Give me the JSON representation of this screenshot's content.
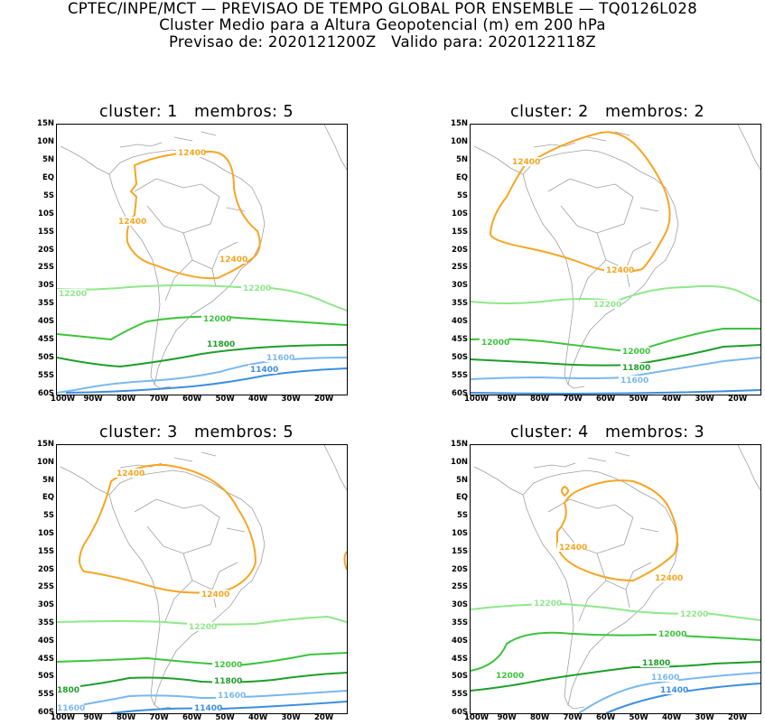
{
  "header": {
    "line1": "CPTEC/INPE/MCT — PREVISAO DE TEMPO GLOBAL POR ENSEMBLE — TQ0126L028",
    "line2": "Cluster Medio para a Altura Geopotencial (m) em 200 hPa",
    "line3": "Previsao de: 2020121200Z   Valido para: 2020122118Z"
  },
  "axes": {
    "lat_labels": [
      "15N",
      "10N",
      "5N",
      "EQ",
      "5S",
      "10S",
      "15S",
      "20S",
      "25S",
      "30S",
      "35S",
      "40S",
      "45S",
      "50S",
      "55S",
      "60S"
    ],
    "lon_labels": [
      "100W",
      "90W",
      "80W",
      "70W",
      "60W",
      "50W",
      "40W",
      "30W",
      "20W"
    ]
  },
  "colors": {
    "c12400": "#f5a623",
    "c12200": "#8fe88a",
    "c12000": "#3cc43c",
    "c11800": "#1e9e2a",
    "c11600": "#7ab8ee",
    "c11400": "#3c8fe0",
    "coast": "#a0a0a0"
  },
  "panels": [
    {
      "title": "cluster: 1   membros: 5",
      "labels": {
        "l12400a": "12400",
        "l12400b": "12400",
        "l12400c": "12400",
        "l12200a": "12200",
        "l12200b": "12200",
        "l12000": "12000",
        "l11800": "11800",
        "l11600": "11600",
        "l11400": "11400"
      }
    },
    {
      "title": "cluster: 2   membros: 2",
      "labels": {
        "l12400a": "12400",
        "l12400b": "12400",
        "l12200": "12200",
        "l12000a": "12000",
        "l12000b": "12000",
        "l11800": "11800",
        "l11600": "11600"
      }
    },
    {
      "title": "cluster: 3   membros: 5",
      "labels": {
        "l12400a": "12400",
        "l12400b": "12400",
        "l12200": "12200",
        "l12000": "12000",
        "l11800a": "11800",
        "l11800b": "1800",
        "l11600a": "11600",
        "l11600b": "11600",
        "l11400": "11400"
      }
    },
    {
      "title": "cluster: 4   membros: 3",
      "labels": {
        "l12400a": "12400",
        "l12400b": "12400",
        "l12200a": "12200",
        "l12200b": "12200",
        "l12000a": "12000",
        "l12000b": "12000",
        "l11800": "11800",
        "l11600": "11600",
        "l11400": "11400"
      }
    }
  ]
}
